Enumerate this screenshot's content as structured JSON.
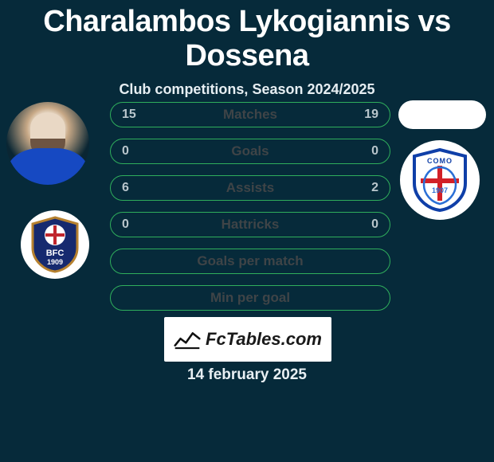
{
  "title": "Charalambos Lykogiannis vs Dossena",
  "subtitle": "Club competitions, Season 2024/2025",
  "date": "14 february 2025",
  "brand": "FcTables.com",
  "colors": {
    "background": "#062a3a",
    "pill_border": "#2fae5c",
    "label_text": "#3f4447",
    "value_text": "#b9c6cc",
    "white": "#ffffff"
  },
  "crest_left": {
    "name": "bfc-1909-crest",
    "shield_fill": "#162a6f",
    "shield_stroke": "#b6812f",
    "cross": "#c0262d",
    "text": "BFC",
    "year": "1909"
  },
  "crest_right": {
    "name": "como-crest",
    "shield_fill": "#ffffff",
    "shield_stroke": "#0f3fa8",
    "cross": "#d22027",
    "inner": "#2a6fd6",
    "text": "COMO",
    "year": "1907"
  },
  "rows": [
    {
      "label": "Matches",
      "left": "15",
      "right": "19"
    },
    {
      "label": "Goals",
      "left": "0",
      "right": "0"
    },
    {
      "label": "Assists",
      "left": "6",
      "right": "2"
    },
    {
      "label": "Hattricks",
      "left": "0",
      "right": "0"
    },
    {
      "label": "Goals per match",
      "left": "",
      "right": ""
    },
    {
      "label": "Min per goal",
      "left": "",
      "right": ""
    }
  ]
}
